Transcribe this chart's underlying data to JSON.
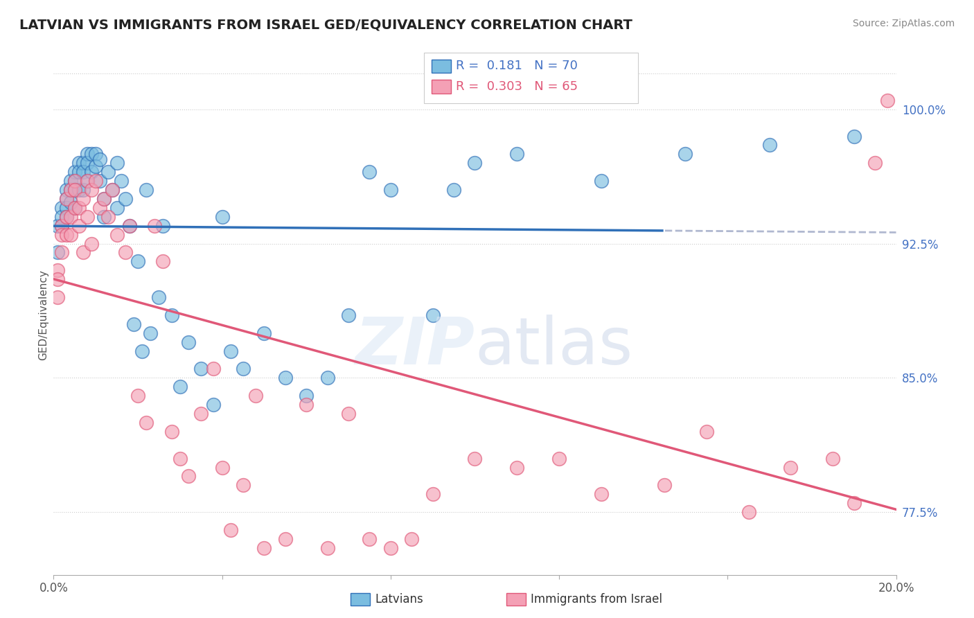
{
  "title": "LATVIAN VS IMMIGRANTS FROM ISRAEL GED/EQUIVALENCY CORRELATION CHART",
  "source": "Source: ZipAtlas.com",
  "ylabel": "GED/Equivalency",
  "yticks": [
    77.5,
    85.0,
    92.5,
    100.0
  ],
  "xmin": 0.0,
  "xmax": 0.2,
  "ymin": 74.0,
  "ymax": 103.0,
  "legend_latvian": "Latvians",
  "legend_israel": "Immigrants from Israel",
  "R_latvian": 0.181,
  "N_latvian": 70,
  "R_israel": 0.303,
  "N_israel": 65,
  "color_latvian": "#7bbde0",
  "color_israel": "#f4a0b5",
  "color_latvian_line": "#3070b8",
  "color_israel_line": "#e05878",
  "color_dashed": "#b0b8d0",
  "background_color": "#ffffff",
  "latvian_x": [
    0.001,
    0.001,
    0.002,
    0.002,
    0.002,
    0.003,
    0.003,
    0.003,
    0.003,
    0.004,
    0.004,
    0.004,
    0.005,
    0.005,
    0.005,
    0.005,
    0.006,
    0.006,
    0.006,
    0.007,
    0.007,
    0.007,
    0.008,
    0.008,
    0.008,
    0.009,
    0.009,
    0.01,
    0.01,
    0.011,
    0.011,
    0.012,
    0.012,
    0.013,
    0.014,
    0.015,
    0.015,
    0.016,
    0.017,
    0.018,
    0.019,
    0.02,
    0.021,
    0.022,
    0.023,
    0.025,
    0.026,
    0.028,
    0.03,
    0.032,
    0.035,
    0.038,
    0.04,
    0.042,
    0.045,
    0.05,
    0.055,
    0.06,
    0.065,
    0.07,
    0.075,
    0.08,
    0.09,
    0.095,
    0.1,
    0.11,
    0.13,
    0.15,
    0.17,
    0.19
  ],
  "latvian_y": [
    93.5,
    92.0,
    94.5,
    94.0,
    93.5,
    95.5,
    95.0,
    94.5,
    94.0,
    96.0,
    95.5,
    94.8,
    96.5,
    96.0,
    95.5,
    94.5,
    97.0,
    96.5,
    95.5,
    97.0,
    96.5,
    95.5,
    97.5,
    97.0,
    96.0,
    97.5,
    96.5,
    97.5,
    96.8,
    97.2,
    96.0,
    95.0,
    94.0,
    96.5,
    95.5,
    97.0,
    94.5,
    96.0,
    95.0,
    93.5,
    88.0,
    91.5,
    86.5,
    95.5,
    87.5,
    89.5,
    93.5,
    88.5,
    84.5,
    87.0,
    85.5,
    83.5,
    94.0,
    86.5,
    85.5,
    87.5,
    85.0,
    84.0,
    85.0,
    88.5,
    96.5,
    95.5,
    88.5,
    95.5,
    97.0,
    97.5,
    96.0,
    97.5,
    98.0,
    98.5
  ],
  "israel_x": [
    0.001,
    0.001,
    0.001,
    0.002,
    0.002,
    0.002,
    0.003,
    0.003,
    0.003,
    0.004,
    0.004,
    0.004,
    0.005,
    0.005,
    0.005,
    0.006,
    0.006,
    0.007,
    0.007,
    0.008,
    0.008,
    0.009,
    0.009,
    0.01,
    0.011,
    0.012,
    0.013,
    0.014,
    0.015,
    0.017,
    0.018,
    0.02,
    0.022,
    0.024,
    0.026,
    0.028,
    0.03,
    0.032,
    0.035,
    0.038,
    0.04,
    0.042,
    0.045,
    0.048,
    0.05,
    0.055,
    0.06,
    0.065,
    0.07,
    0.075,
    0.08,
    0.085,
    0.09,
    0.1,
    0.11,
    0.12,
    0.13,
    0.145,
    0.155,
    0.165,
    0.175,
    0.185,
    0.19,
    0.195,
    0.198
  ],
  "israel_y": [
    91.0,
    90.5,
    89.5,
    93.5,
    93.0,
    92.0,
    95.0,
    94.0,
    93.0,
    95.5,
    94.0,
    93.0,
    96.0,
    95.5,
    94.5,
    94.5,
    93.5,
    95.0,
    92.0,
    96.0,
    94.0,
    95.5,
    92.5,
    96.0,
    94.5,
    95.0,
    94.0,
    95.5,
    93.0,
    92.0,
    93.5,
    84.0,
    82.5,
    93.5,
    91.5,
    82.0,
    80.5,
    79.5,
    83.0,
    85.5,
    80.0,
    76.5,
    79.0,
    84.0,
    75.5,
    76.0,
    83.5,
    75.5,
    83.0,
    76.0,
    75.5,
    76.0,
    78.5,
    80.5,
    80.0,
    80.5,
    78.5,
    79.0,
    82.0,
    77.5,
    80.0,
    80.5,
    78.0,
    97.0,
    100.5
  ]
}
